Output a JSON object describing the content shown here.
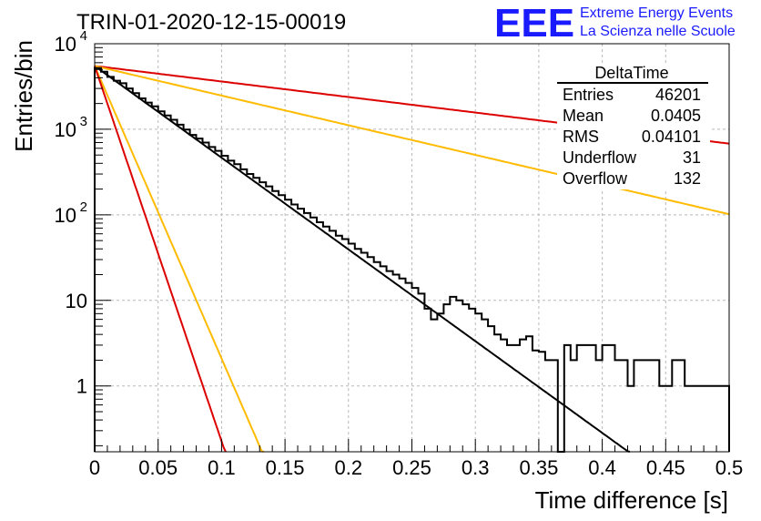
{
  "title": "TRIN-01-2020-12-15-00019",
  "brand": {
    "logo_text": "EEE",
    "line1": "Extreme Energy Events",
    "line2": "La Scienza nelle Scuole",
    "color": "#1a1aff"
  },
  "stats": {
    "title": "DeltaTime",
    "rows": [
      {
        "label": "Entries",
        "value": "46201"
      },
      {
        "label": "Mean",
        "value": "0.0405"
      },
      {
        "label": "RMS",
        "value": "0.04101"
      },
      {
        "label": "Underflow",
        "value": "31"
      },
      {
        "label": "Overflow",
        "value": "132"
      }
    ]
  },
  "chart_data": {
    "type": "line",
    "title": "TRIN-01-2020-12-15-00019",
    "xlabel": "Time difference [s]",
    "ylabel": "Entries/bin",
    "xlim": [
      0,
      0.5
    ],
    "ylim": [
      0.17,
      10000
    ],
    "yscale": "log",
    "grid": true,
    "x_ticks": [
      "0",
      "0.05",
      "0.1",
      "0.15",
      "0.2",
      "0.25",
      "0.3",
      "0.35",
      "0.4",
      "0.45",
      "0.5"
    ],
    "y_ticks": [
      {
        "value": 1,
        "label": "1"
      },
      {
        "value": 10,
        "label": "10"
      },
      {
        "value": 100,
        "label": "10",
        "exp": "2"
      },
      {
        "value": 1000,
        "label": "10",
        "exp": "3"
      },
      {
        "value": 10000,
        "label": "10",
        "exp": "4"
      }
    ],
    "histogram": {
      "color": "#000000",
      "bin_width": 0.005,
      "values": [
        5200,
        4700,
        4100,
        3700,
        3450,
        3000,
        2650,
        2300,
        2050,
        1850,
        1620,
        1450,
        1290,
        1130,
        990,
        860,
        780,
        700,
        620,
        560,
        490,
        430,
        390,
        340,
        300,
        270,
        240,
        215,
        190,
        170,
        150,
        132,
        118,
        105,
        93,
        82,
        73,
        65,
        57,
        52,
        46,
        40,
        36,
        32,
        28,
        25,
        22,
        20,
        18,
        16,
        14,
        12,
        8,
        6,
        7,
        9,
        11,
        10,
        9,
        8,
        7,
        6,
        5,
        4,
        3.5,
        3,
        3,
        3.5,
        3.8,
        2.6,
        2.5,
        2,
        2,
        0.1,
        3,
        2,
        3,
        3,
        3,
        2,
        3,
        3,
        2,
        2,
        1,
        2,
        2,
        2,
        2,
        1,
        1,
        2,
        2,
        1,
        1,
        1,
        1,
        1,
        1,
        1
      ]
    },
    "series": [
      {
        "color": "#000000",
        "y0": 5500,
        "tau": 0.0405
      },
      {
        "color": "#dd0000",
        "y0": 5500,
        "tau": 0.2391
      },
      {
        "color": "#ffbb00",
        "y0": 5500,
        "tau": 0.1253
      },
      {
        "color": "#ffbb00",
        "y0": 5500,
        "tau": 0.0127
      },
      {
        "color": "#dd0000",
        "y0": 5500,
        "tau": 0.0099
      }
    ]
  }
}
